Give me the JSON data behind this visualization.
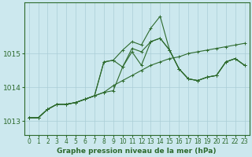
{
  "xlabel": "Graphe pression niveau de la mer (hPa)",
  "xlim": [
    -0.5,
    23.5
  ],
  "ylim": [
    1012.6,
    1016.5
  ],
  "yticks": [
    1013,
    1014,
    1015
  ],
  "xticks": [
    0,
    1,
    2,
    3,
    4,
    5,
    6,
    7,
    8,
    9,
    10,
    11,
    12,
    13,
    14,
    15,
    16,
    17,
    18,
    19,
    20,
    21,
    22,
    23
  ],
  "bg_color": "#cce8ee",
  "line_color": "#2d6a2d",
  "grid_color": "#aacdd6",
  "series": [
    [
      1013.1,
      1013.1,
      1013.35,
      1013.5,
      1013.5,
      1013.55,
      1013.65,
      1013.75,
      1013.85,
      1013.9,
      1014.6,
      1015.15,
      1015.05,
      1015.35,
      1015.45,
      1015.1,
      1014.55,
      1014.25,
      1014.2,
      1014.3,
      1014.35,
      1014.75,
      1014.85,
      1014.65
    ],
    [
      1013.1,
      1013.1,
      1013.35,
      1013.5,
      1013.5,
      1013.55,
      1013.65,
      1013.75,
      1014.75,
      1014.8,
      1014.6,
      1015.05,
      1014.65,
      1015.35,
      1015.45,
      1015.1,
      1014.55,
      1014.25,
      1014.2,
      1014.3,
      1014.35,
      1014.75,
      1014.85,
      1014.65
    ],
    [
      1013.1,
      1013.1,
      1013.35,
      1013.5,
      1013.5,
      1013.55,
      1013.65,
      1013.75,
      1014.75,
      1014.8,
      1015.1,
      1015.35,
      1015.25,
      1015.75,
      1016.1,
      1015.1,
      1014.55,
      1014.25,
      1014.2,
      1014.3,
      1014.35,
      1014.75,
      1014.85,
      1014.65
    ],
    [
      1013.1,
      1013.1,
      1013.35,
      1013.5,
      1013.5,
      1013.55,
      1013.65,
      1013.75,
      1013.85,
      1014.05,
      1014.2,
      1014.35,
      1014.5,
      1014.65,
      1014.75,
      1014.85,
      1014.9,
      1015.0,
      1015.05,
      1015.1,
      1015.15,
      1015.2,
      1015.25,
      1015.3
    ]
  ],
  "marker": "+",
  "markersize": 3.5,
  "linewidth": 0.8,
  "tick_fontsize": 5.5,
  "xlabel_fontsize": 6.5
}
